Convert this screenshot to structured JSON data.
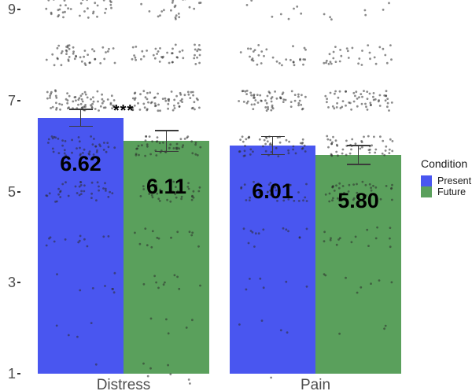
{
  "colors": {
    "present": "#4956F0",
    "future": "#5AA05C",
    "point": "#2b2b2b",
    "error_bar": "#3a3a3a",
    "axis_text": "#4d4d4d",
    "value_label": "#000000"
  },
  "legend": {
    "title": "Condition",
    "items": [
      {
        "label": "Present",
        "color_key": "present"
      },
      {
        "label": "Future",
        "color_key": "future"
      }
    ]
  },
  "significance": {
    "label": "***",
    "group": "Distress",
    "y_value": 6.8
  },
  "chart_data": {
    "type": "bar",
    "title": "",
    "xlabel": "",
    "ylabel": "",
    "categories": [
      "Distress",
      "Pain"
    ],
    "series": [
      {
        "name": "Present",
        "values": [
          6.62,
          6.01
        ],
        "se": [
          0.2,
          0.21
        ],
        "labels": [
          "6.62",
          "6.01"
        ]
      },
      {
        "name": "Future",
        "values": [
          6.11,
          5.8
        ],
        "se": [
          0.24,
          0.22
        ],
        "labels": [
          "6.11",
          "5.80"
        ]
      }
    ],
    "ylim": [
      1,
      9.3
    ],
    "yticks": [
      9,
      7,
      5,
      3,
      1
    ],
    "grid": false,
    "legend_position": "right",
    "bar_baseline_value": 1,
    "jitter_points_per_rating": {
      "Distress": {
        "Present": {
          "9": 36,
          "8": 48,
          "7": 75,
          "6": 45,
          "5": 38,
          "4": 12,
          "3": 8,
          "2": 4,
          "1": 1
        },
        "Future": {
          "9": 22,
          "8": 45,
          "7": 70,
          "6": 48,
          "5": 33,
          "4": 14,
          "3": 10,
          "2": 5,
          "1": 7
        }
      },
      "Pain": {
        "Present": {
          "9": 8,
          "8": 33,
          "7": 65,
          "6": 50,
          "5": 38,
          "4": 14,
          "3": 6,
          "2": 4,
          "1": 1
        },
        "Future": {
          "9": 7,
          "8": 33,
          "7": 60,
          "6": 52,
          "5": 40,
          "4": 16,
          "3": 8,
          "2": 3
        }
      }
    }
  }
}
